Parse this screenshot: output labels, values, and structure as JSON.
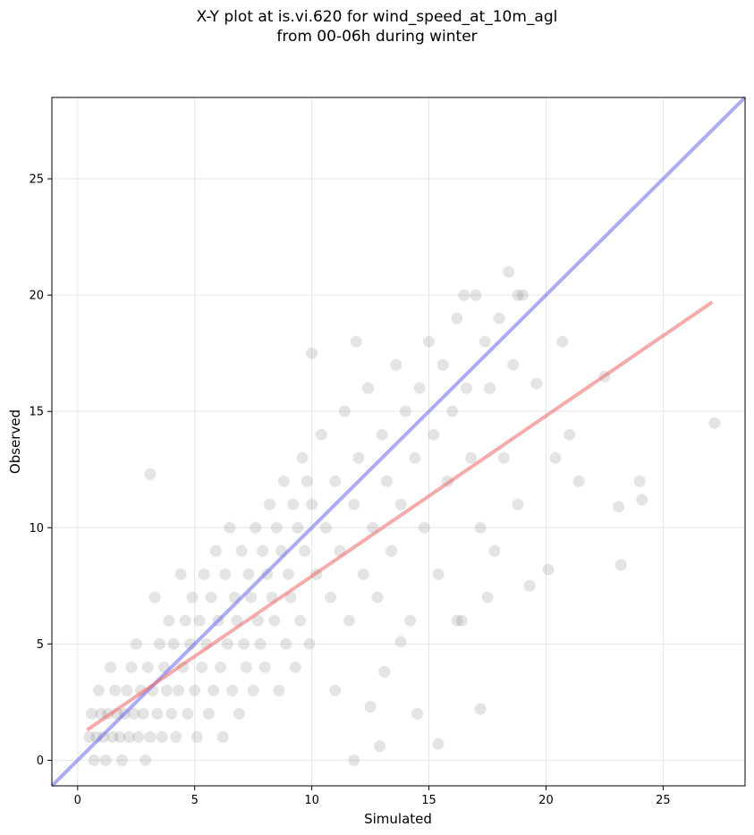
{
  "chart_data": {
    "type": "scatter",
    "title_lines": [
      "X-Y plot at is.vi.620 for wind_speed_at_10m_agl",
      "from 00-06h during winter"
    ],
    "xlabel": "Simulated",
    "ylabel": "Observed",
    "xlim": [
      -1.1,
      28.5
    ],
    "ylim": [
      -1.1,
      28.5
    ],
    "xticks": [
      0,
      5,
      10,
      15,
      20,
      25
    ],
    "yticks": [
      0,
      5,
      10,
      15,
      20,
      25
    ],
    "grid": true,
    "colors": {
      "points": "#555555",
      "one_to_one_line": "#6666ee",
      "fit_line": "#ee6666"
    },
    "reference_lines": [
      {
        "kind": "one-to-one",
        "x": [
          -1.1,
          28.5
        ],
        "y": [
          -1.1,
          28.5
        ]
      },
      {
        "kind": "regression",
        "x": [
          0.4,
          27.1
        ],
        "y": [
          1.3,
          19.7
        ]
      }
    ],
    "points": [
      [
        0.5,
        1.0
      ],
      [
        0.6,
        2.0
      ],
      [
        0.7,
        0.0
      ],
      [
        0.8,
        1.0
      ],
      [
        0.9,
        3.0
      ],
      [
        1.0,
        2.0
      ],
      [
        1.1,
        1.0
      ],
      [
        1.2,
        0.0
      ],
      [
        1.3,
        2.0
      ],
      [
        1.4,
        4.0
      ],
      [
        1.5,
        1.0
      ],
      [
        1.6,
        3.0
      ],
      [
        1.7,
        2.0
      ],
      [
        1.8,
        1.0
      ],
      [
        1.9,
        0.0
      ],
      [
        2.0,
        2.0
      ],
      [
        2.1,
        3.0
      ],
      [
        2.2,
        1.0
      ],
      [
        2.3,
        4.0
      ],
      [
        2.4,
        2.0
      ],
      [
        2.5,
        5.0
      ],
      [
        2.6,
        1.0
      ],
      [
        2.7,
        3.0
      ],
      [
        2.8,
        2.0
      ],
      [
        2.9,
        0.0
      ],
      [
        3.0,
        4.0
      ],
      [
        3.1,
        1.0
      ],
      [
        3.2,
        3.0
      ],
      [
        3.3,
        7.0
      ],
      [
        3.4,
        2.0
      ],
      [
        3.5,
        5.0
      ],
      [
        3.6,
        1.0
      ],
      [
        3.7,
        4.0
      ],
      [
        3.8,
        3.0
      ],
      [
        3.9,
        6.0
      ],
      [
        4.0,
        2.0
      ],
      [
        4.1,
        5.0
      ],
      [
        4.2,
        1.0
      ],
      [
        4.3,
        3.0
      ],
      [
        4.4,
        8.0
      ],
      [
        4.5,
        4.0
      ],
      [
        4.6,
        6.0
      ],
      [
        4.7,
        2.0
      ],
      [
        4.8,
        5.0
      ],
      [
        4.9,
        7.0
      ],
      [
        5.0,
        3.0
      ],
      [
        5.1,
        1.0
      ],
      [
        5.2,
        6.0
      ],
      [
        5.3,
        4.0
      ],
      [
        5.4,
        8.0
      ],
      [
        5.5,
        5.0
      ],
      [
        5.6,
        2.0
      ],
      [
        5.7,
        7.0
      ],
      [
        5.8,
        3.0
      ],
      [
        5.9,
        9.0
      ],
      [
        6.0,
        6.0
      ],
      [
        6.1,
        4.0
      ],
      [
        6.2,
        1.0
      ],
      [
        6.3,
        8.0
      ],
      [
        6.4,
        5.0
      ],
      [
        6.5,
        10.0
      ],
      [
        6.6,
        3.0
      ],
      [
        6.7,
        7.0
      ],
      [
        6.8,
        6.0
      ],
      [
        6.9,
        2.0
      ],
      [
        7.0,
        9.0
      ],
      [
        7.1,
        5.0
      ],
      [
        7.2,
        4.0
      ],
      [
        7.3,
        8.0
      ],
      [
        7.4,
        7.0
      ],
      [
        7.5,
        3.0
      ],
      [
        7.6,
        10.0
      ],
      [
        7.7,
        6.0
      ],
      [
        7.8,
        5.0
      ],
      [
        7.9,
        9.0
      ],
      [
        8.0,
        4.0
      ],
      [
        8.1,
        8.0
      ],
      [
        8.2,
        11.0
      ],
      [
        8.3,
        7.0
      ],
      [
        8.4,
        6.0
      ],
      [
        8.5,
        10.0
      ],
      [
        8.6,
        3.0
      ],
      [
        8.7,
        9.0
      ],
      [
        8.8,
        12.0
      ],
      [
        8.9,
        5.0
      ],
      [
        9.0,
        8.0
      ],
      [
        9.1,
        7.0
      ],
      [
        9.2,
        11.0
      ],
      [
        9.3,
        4.0
      ],
      [
        9.4,
        10.0
      ],
      [
        9.5,
        6.0
      ],
      [
        9.6,
        13.0
      ],
      [
        9.7,
        9.0
      ],
      [
        9.8,
        12.0
      ],
      [
        9.9,
        5.0
      ],
      [
        10.0,
        11.0
      ],
      [
        10.2,
        8.0
      ],
      [
        10.4,
        14.0
      ],
      [
        10.6,
        10.0
      ],
      [
        10.8,
        7.0
      ],
      [
        11.0,
        12.0
      ],
      [
        11.2,
        9.0
      ],
      [
        11.4,
        15.0
      ],
      [
        11.6,
        6.0
      ],
      [
        11.8,
        11.0
      ],
      [
        12.0,
        13.0
      ],
      [
        12.2,
        8.0
      ],
      [
        12.4,
        16.0
      ],
      [
        12.6,
        10.0
      ],
      [
        12.8,
        7.0
      ],
      [
        13.0,
        14.0
      ],
      [
        13.2,
        12.0
      ],
      [
        13.4,
        9.0
      ],
      [
        13.6,
        17.0
      ],
      [
        13.8,
        11.0
      ],
      [
        14.0,
        15.0
      ],
      [
        14.2,
        6.0
      ],
      [
        14.4,
        13.0
      ],
      [
        14.6,
        16.0
      ],
      [
        14.8,
        10.0
      ],
      [
        15.0,
        18.0
      ],
      [
        15.2,
        14.0
      ],
      [
        15.4,
        8.0
      ],
      [
        15.6,
        17.0
      ],
      [
        15.8,
        12.0
      ],
      [
        16.0,
        15.0
      ],
      [
        16.2,
        19.0
      ],
      [
        16.4,
        6.0
      ],
      [
        16.6,
        16.0
      ],
      [
        16.8,
        13.0
      ],
      [
        17.0,
        20.0
      ],
      [
        17.2,
        10.0
      ],
      [
        17.4,
        18.0
      ],
      [
        17.6,
        16.0
      ],
      [
        17.8,
        9.0
      ],
      [
        18.0,
        19.0
      ],
      [
        18.2,
        13.0
      ],
      [
        18.4,
        21.0
      ],
      [
        18.6,
        17.0
      ],
      [
        18.8,
        11.0
      ],
      [
        19.0,
        20.0
      ],
      [
        19.3,
        7.5
      ],
      [
        19.6,
        16.2
      ],
      [
        20.1,
        8.2
      ],
      [
        20.4,
        13.0
      ],
      [
        20.7,
        18.0
      ],
      [
        21.0,
        14.0
      ],
      [
        21.4,
        12.0
      ],
      [
        22.5,
        16.5
      ],
      [
        23.1,
        10.9
      ],
      [
        23.2,
        8.4
      ],
      [
        24.0,
        12.0
      ],
      [
        24.1,
        11.2
      ],
      [
        27.2,
        14.5
      ],
      [
        15.4,
        0.7
      ],
      [
        17.2,
        2.2
      ],
      [
        12.9,
        0.6
      ],
      [
        11.8,
        0.0
      ],
      [
        3.1,
        12.3
      ],
      [
        10.0,
        17.5
      ],
      [
        11.9,
        18.0
      ],
      [
        16.5,
        20.0
      ],
      [
        18.8,
        20.0
      ],
      [
        13.1,
        3.8
      ],
      [
        14.5,
        2.0
      ],
      [
        13.8,
        5.1
      ],
      [
        16.2,
        6.0
      ],
      [
        17.5,
        7.0
      ],
      [
        11.0,
        3.0
      ],
      [
        12.5,
        2.3
      ]
    ]
  }
}
